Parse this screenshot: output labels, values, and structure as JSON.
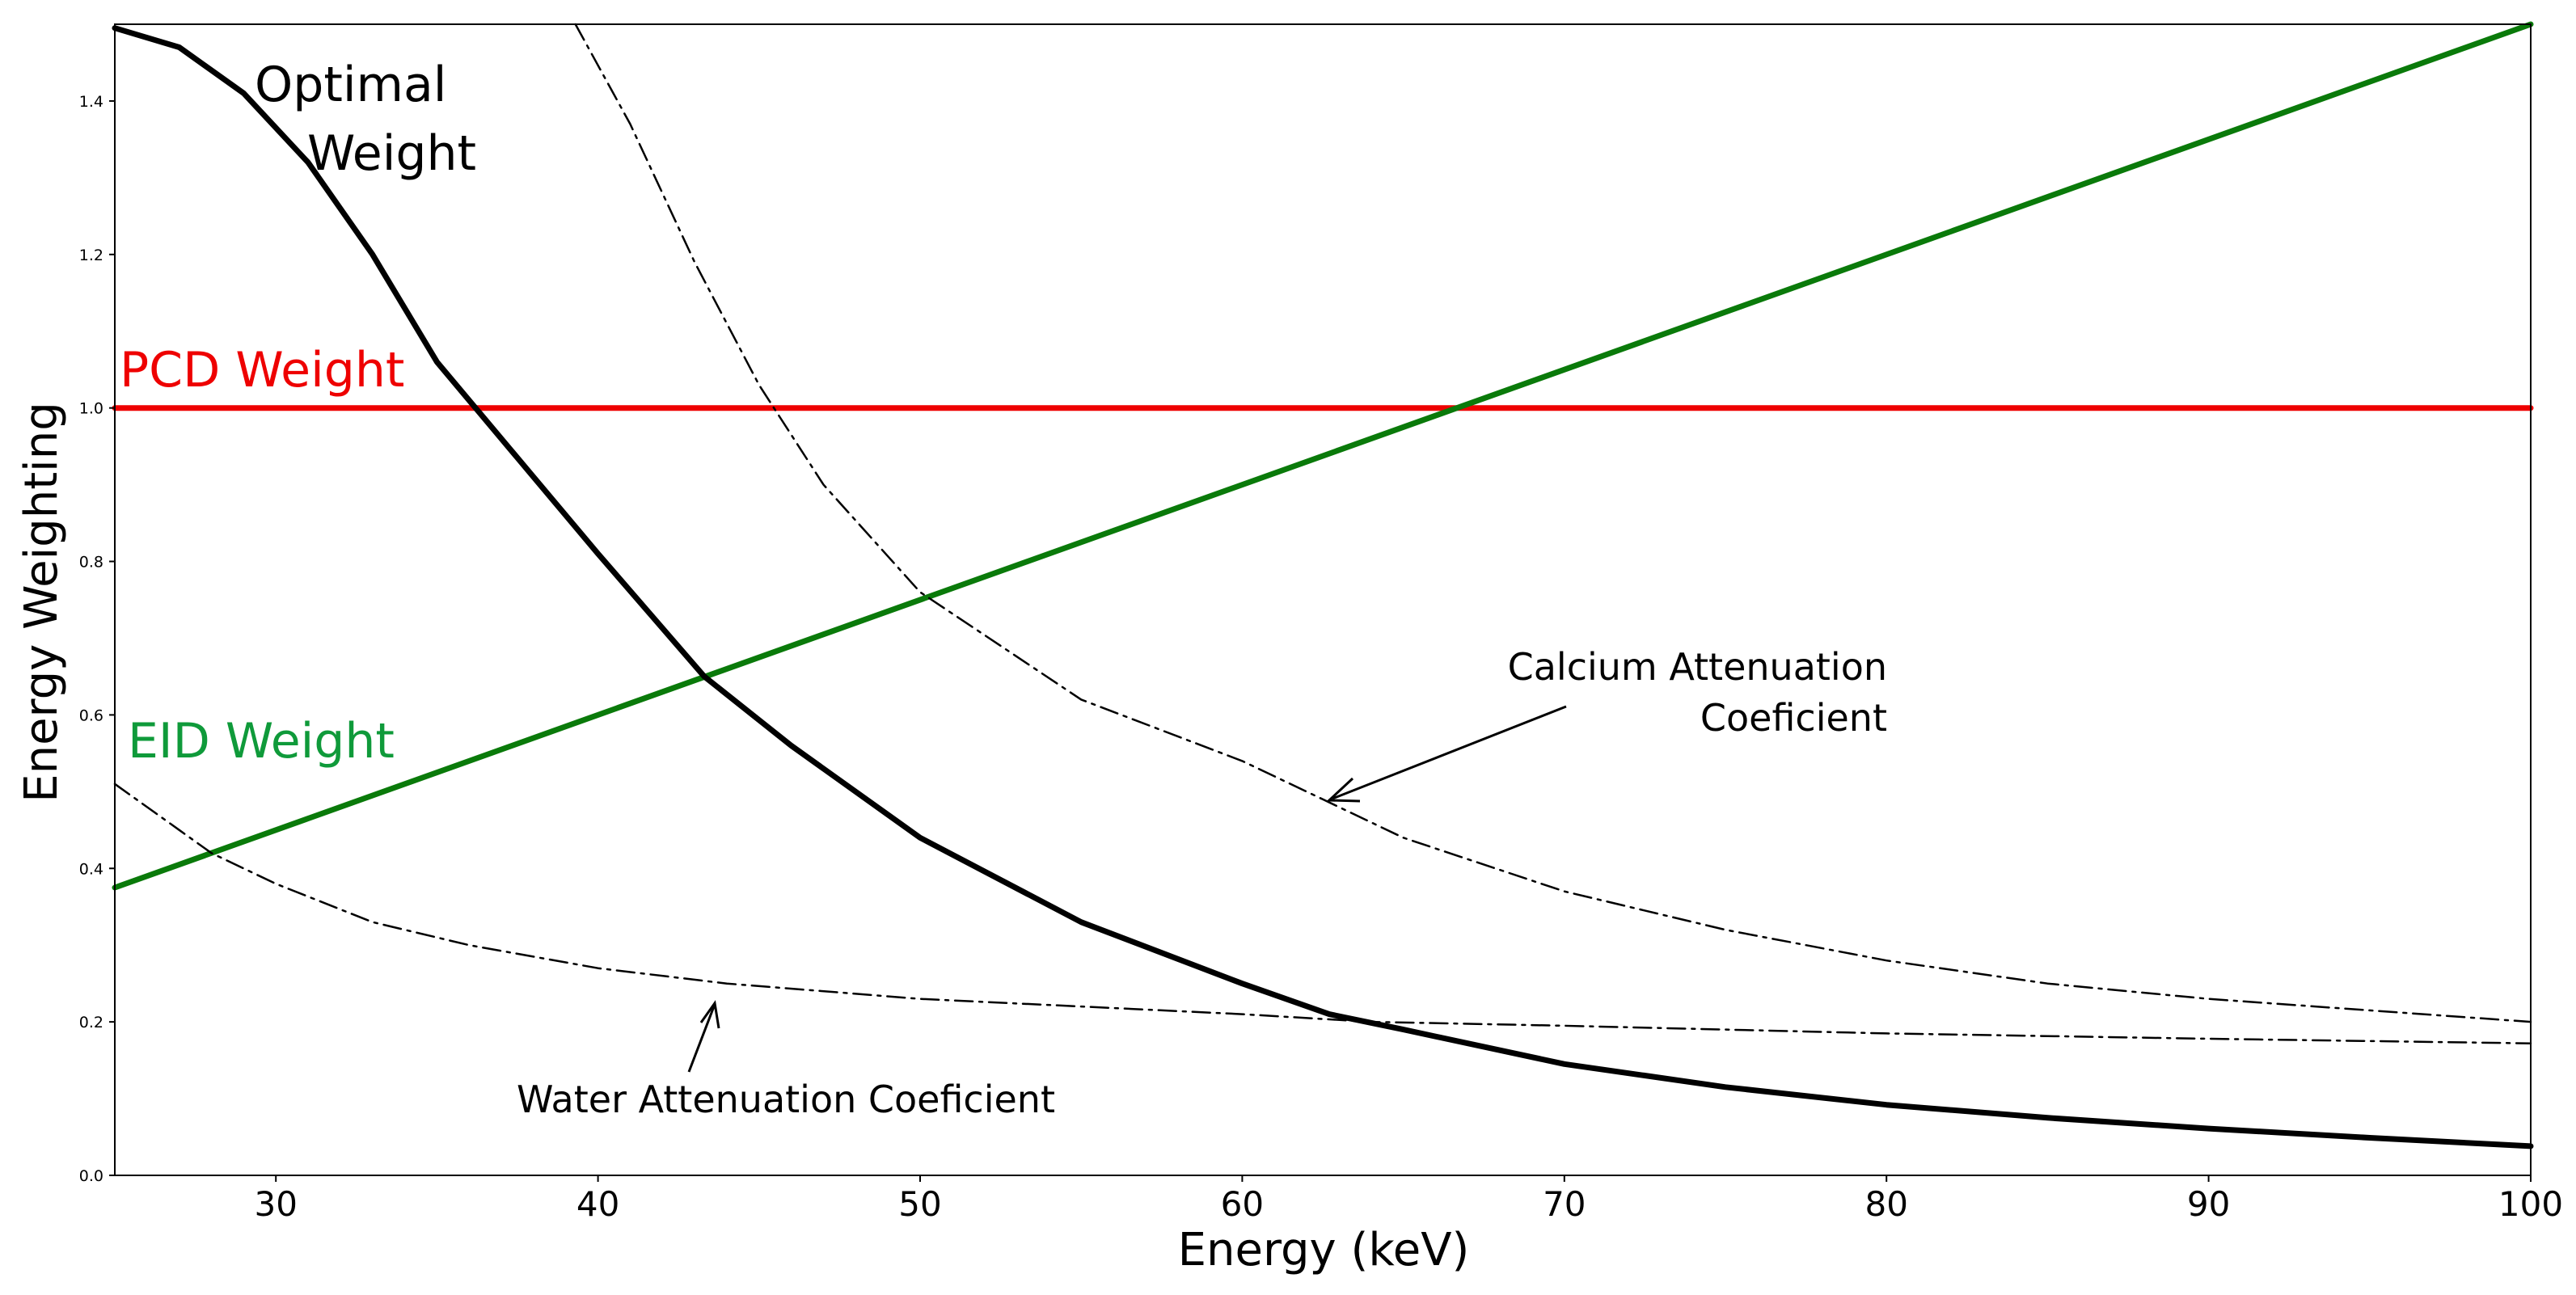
{
  "chart_data": {
    "type": "line",
    "xlabel": "Energy (keV)",
    "ylabel": "Energy Weighting",
    "xlim": [
      25,
      100
    ],
    "ylim": [
      0.0,
      1.5
    ],
    "x_ticks": [
      "30",
      "40",
      "50",
      "60",
      "70",
      "80",
      "90",
      "100"
    ],
    "y_ticks": [
      "0.0",
      "0.2",
      "0.4",
      "0.6",
      "0.8",
      "1.0",
      "1.2",
      "1.4"
    ],
    "grid": false,
    "legend": "none",
    "colors": {
      "pcd": "#ee0000",
      "eid": "#0a7a0a",
      "eid_text": "#0f9a3a",
      "optimal": "#000000",
      "attenuation": "#000000"
    },
    "annotations": {
      "optimal_line1": "Optimal",
      "optimal_line2": "Weight",
      "pcd": "PCD Weight",
      "eid": "EID Weight",
      "calcium_line1": "Calcium Attenuation",
      "calcium_line2": "Coeficient",
      "water": "Water Attenuation Coeficient"
    },
    "series": [
      {
        "key": "pcd",
        "x": [
          25,
          100
        ],
        "y": [
          1.0,
          1.0
        ]
      },
      {
        "key": "eid",
        "x": [
          25,
          100
        ],
        "y": [
          0.375,
          1.5
        ]
      },
      {
        "key": "optimal",
        "x": [
          25,
          27,
          29,
          31,
          33,
          35,
          36.2,
          38,
          40,
          43.3,
          46,
          50,
          55,
          60,
          62.7,
          65,
          70,
          75,
          80,
          85,
          90,
          95,
          100
        ],
        "y": [
          1.495,
          1.47,
          1.41,
          1.32,
          1.2,
          1.06,
          1.0,
          0.91,
          0.81,
          0.65,
          0.56,
          0.44,
          0.33,
          0.25,
          0.21,
          0.19,
          0.145,
          0.115,
          0.092,
          0.075,
          0.061,
          0.049,
          0.038
        ]
      },
      {
        "key": "calcium",
        "x": [
          39.3,
          41,
          43,
          45,
          47,
          50,
          55,
          60,
          62.5,
          65,
          70,
          75,
          80,
          85,
          90,
          95,
          100
        ],
        "y": [
          1.5,
          1.37,
          1.19,
          1.03,
          0.9,
          0.76,
          0.62,
          0.54,
          0.49,
          0.44,
          0.37,
          0.32,
          0.28,
          0.25,
          0.23,
          0.215,
          0.2
        ]
      },
      {
        "key": "water",
        "x": [
          25,
          27,
          28,
          30,
          33,
          36,
          40,
          44,
          50,
          55,
          60,
          64,
          70,
          80,
          90,
          100
        ],
        "y": [
          0.51,
          0.45,
          0.42,
          0.38,
          0.33,
          0.3,
          0.27,
          0.25,
          0.23,
          0.22,
          0.21,
          0.2,
          0.195,
          0.185,
          0.178,
          0.172
        ]
      }
    ]
  }
}
